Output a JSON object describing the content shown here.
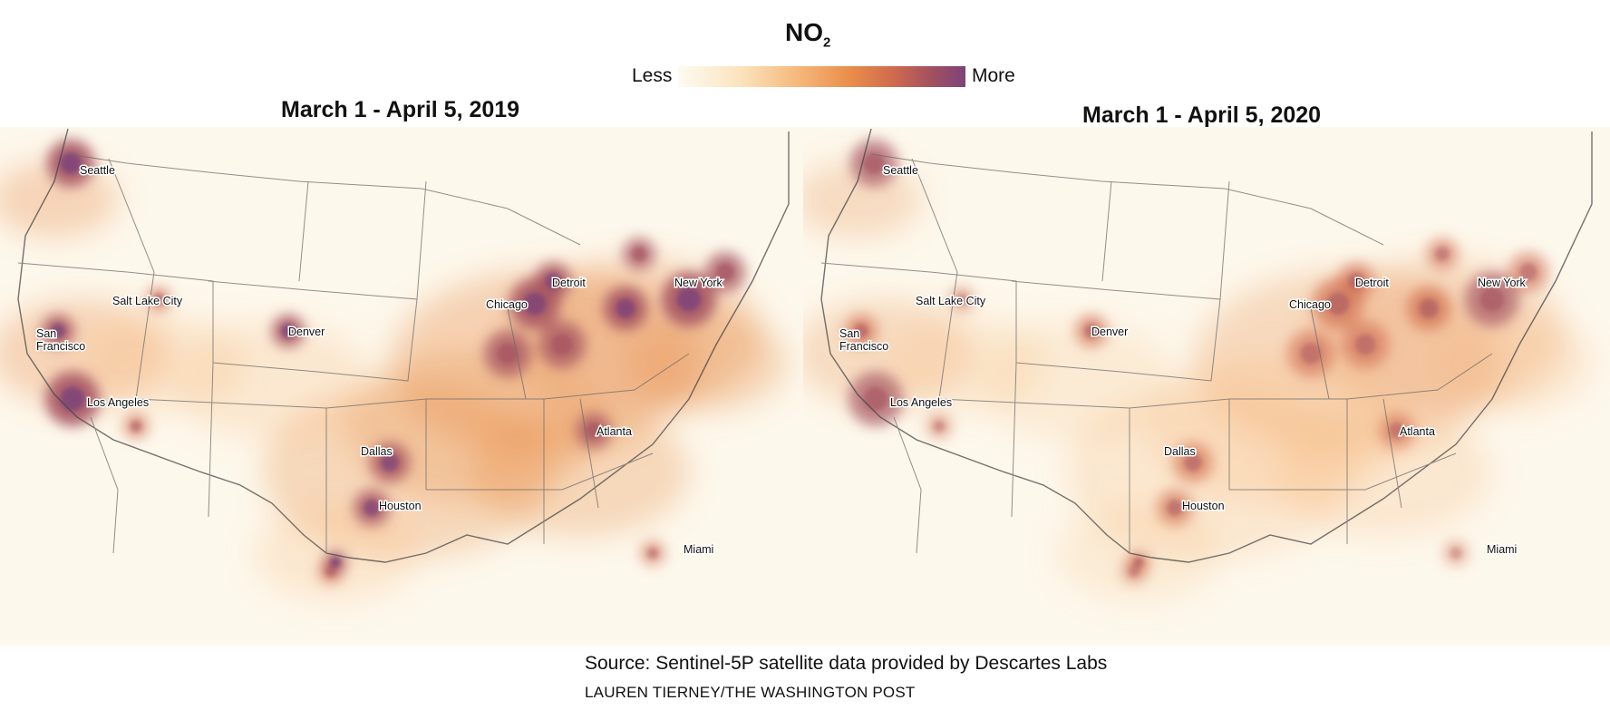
{
  "legend": {
    "title": "NO",
    "title_subscript": "2",
    "low_label": "Less",
    "high_label": "More",
    "scale_colors": [
      "#fdfbf2",
      "#fbe3bc",
      "#f6b77a",
      "#e98d4a",
      "#cf6a4e",
      "#a4505e",
      "#7d4379"
    ]
  },
  "maps": [
    {
      "title": "March 1 - April 5, 2019",
      "intensity": 1.0,
      "cities": [
        "Seattle",
        "Salt Lake City",
        "San Francisco",
        "Los Angeles",
        "Denver",
        "Dallas",
        "Houston",
        "Chicago",
        "Detroit",
        "New York",
        "Atlanta",
        "Miami"
      ]
    },
    {
      "title": "March 1 - April 5, 2020",
      "intensity": 0.72,
      "cities": [
        "Seattle",
        "Salt Lake City",
        "San Francisco",
        "Los Angeles",
        "Denver",
        "Dallas",
        "Houston",
        "Chicago",
        "Detroit",
        "New York",
        "Atlanta",
        "Miami"
      ]
    }
  ],
  "source": "Source: Sentinel-5P satellite data provided by Descartes Labs",
  "credit": "LAUREN TIERNEY/THE WASHINGTON POST"
}
